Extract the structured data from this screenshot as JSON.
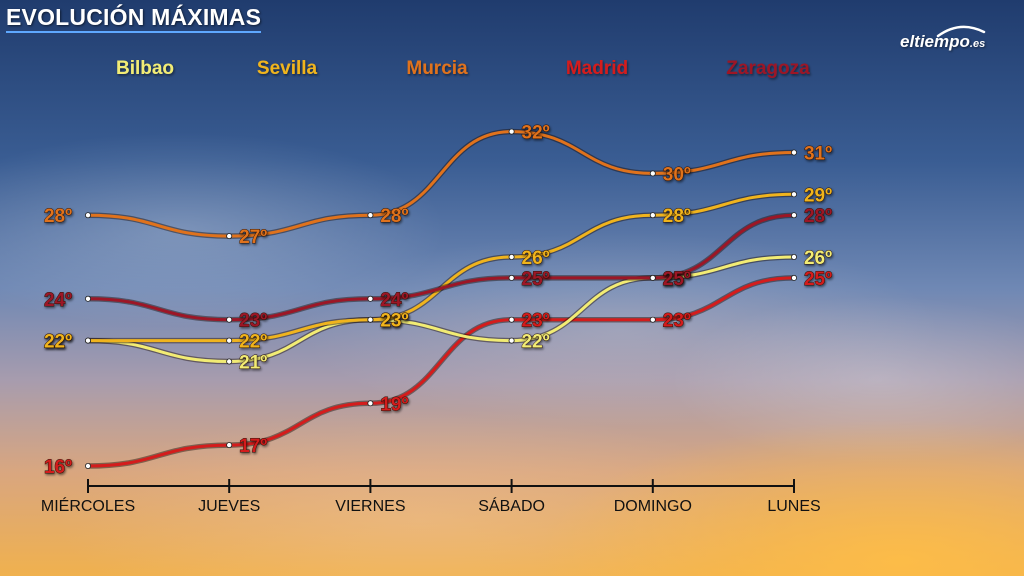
{
  "title": "EVOLUCIÓN MÁXIMAS",
  "logo": {
    "name": "eltiempo",
    "tld": ".es"
  },
  "colors": {
    "Bilbao": "#f2ec74",
    "Sevilla": "#f0b41e",
    "Murcia": "#e0721c",
    "Madrid": "#d41c1c",
    "Zaragoza": "#9c1626"
  },
  "chart_data": {
    "type": "line",
    "title": "EVOLUCIÓN MÁXIMAS",
    "xlabel": "",
    "ylabel": "",
    "unit": "º",
    "categories": [
      "MIÉRCOLES",
      "JUEVES",
      "VIERNES",
      "SÁBADO",
      "DOMINGO",
      "LUNES"
    ],
    "ylim": [
      15,
      33
    ],
    "legend_position": "top",
    "grid": false,
    "series": [
      {
        "name": "Bilbao",
        "values": [
          22,
          21,
          23,
          22,
          25,
          26
        ]
      },
      {
        "name": "Sevilla",
        "values": [
          22,
          22,
          23,
          26,
          28,
          29
        ]
      },
      {
        "name": "Murcia",
        "values": [
          28,
          27,
          28,
          32,
          30,
          31
        ]
      },
      {
        "name": "Madrid",
        "values": [
          16,
          17,
          19,
          23,
          23,
          25
        ]
      },
      {
        "name": "Zaragoza",
        "values": [
          24,
          23,
          24,
          25,
          25,
          28
        ]
      }
    ]
  }
}
